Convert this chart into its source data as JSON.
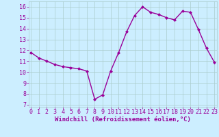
{
  "x": [
    0,
    1,
    2,
    3,
    4,
    5,
    6,
    7,
    8,
    9,
    10,
    11,
    12,
    13,
    14,
    15,
    16,
    17,
    18,
    19,
    20,
    21,
    22,
    23
  ],
  "y": [
    11.8,
    11.3,
    11.0,
    10.7,
    10.5,
    10.4,
    10.3,
    10.1,
    7.5,
    7.9,
    10.1,
    11.8,
    13.7,
    15.2,
    16.0,
    15.5,
    15.3,
    15.0,
    14.8,
    15.6,
    15.5,
    13.9,
    12.2,
    10.9
  ],
  "line_color": "#990099",
  "marker": "D",
  "marker_size": 2.0,
  "bg_color": "#cceeff",
  "grid_color": "#aacccc",
  "xlabel": "Windchill (Refroidissement éolien,°C)",
  "xlabel_color": "#990099",
  "xlabel_fontsize": 6.5,
  "tick_label_color": "#990099",
  "tick_fontsize": 6,
  "ylim": [
    6.8,
    16.5
  ],
  "yticks": [
    7,
    8,
    9,
    10,
    11,
    12,
    13,
    14,
    15,
    16
  ],
  "xticks": [
    0,
    1,
    2,
    3,
    4,
    5,
    6,
    7,
    8,
    9,
    10,
    11,
    12,
    13,
    14,
    15,
    16,
    17,
    18,
    19,
    20,
    21,
    22,
    23
  ],
  "line_width": 1.0,
  "xlim": [
    -0.3,
    23.3
  ]
}
